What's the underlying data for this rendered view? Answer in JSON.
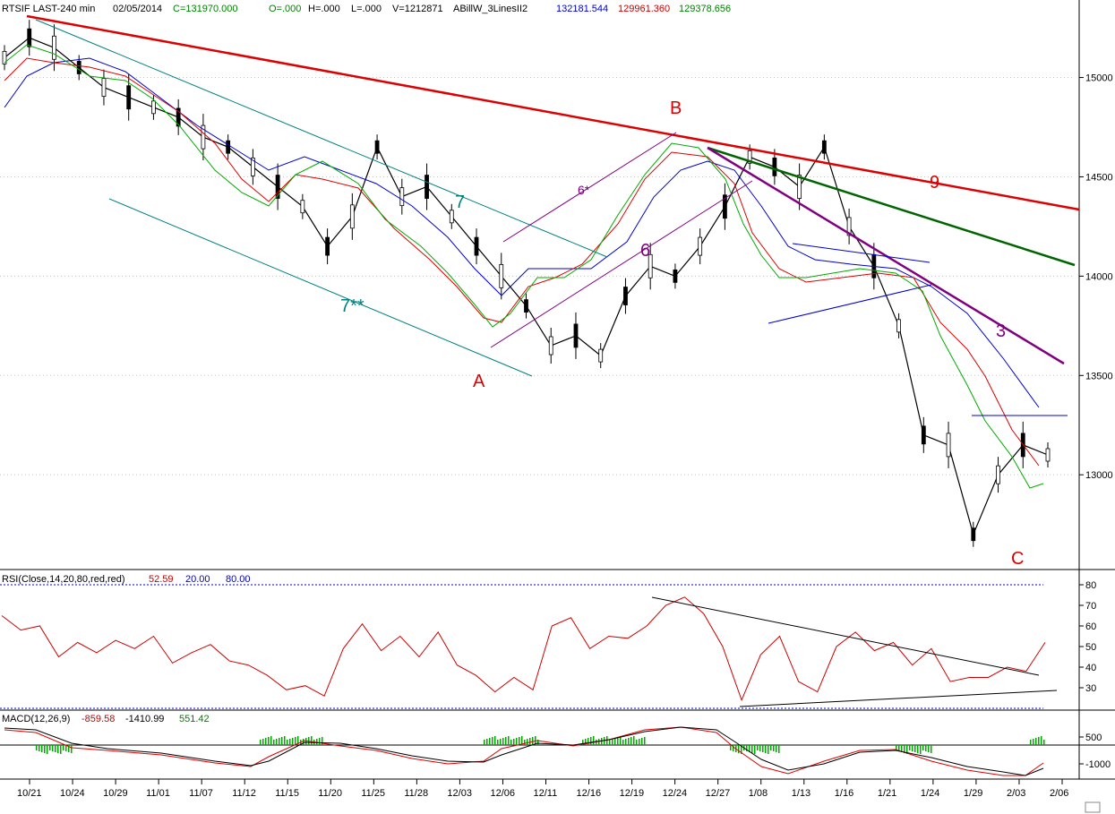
{
  "header": {
    "instrument": "RTSIF LAST-240 min",
    "date": "02/05/2014",
    "close": "C=131970.000",
    "open": "O=.000",
    "high": "H=.000",
    "low": "L=.000",
    "volume": "V=1212871",
    "indicator": "ABillW_3LinesII2",
    "line_blue": "132181.544",
    "line_red": "129961.360",
    "line_green": "129378.656"
  },
  "colors": {
    "price": "#000000",
    "rsi": "#cc0000",
    "blue_line": "#0000cc",
    "red_line": "#dd0000",
    "green_line": "#00aa00",
    "teal": "#008080",
    "purple": "#800080",
    "dark_green": "#006400",
    "macd_hist": "#00aa00"
  },
  "chart_data": [
    {
      "type": "candlestick",
      "yaxis_ticks": [
        "15000",
        "14500",
        "14000",
        "13500",
        "13000"
      ],
      "ylim": [
        12550,
        15300
      ],
      "x_tick_labels": [
        "10/21",
        "10/24",
        "10/29",
        "11/01",
        "11/07",
        "11/12",
        "11/15",
        "11/20",
        "11/25",
        "11/28",
        "12/03",
        "12/06",
        "12/11",
        "12/16",
        "12/19",
        "12/24",
        "12/27",
        "1/08",
        "1/13",
        "1/16",
        "1/21",
        "1/24",
        "1/29",
        "2/03",
        "2/06"
      ],
      "price_path": [
        [
          0,
          15100
        ],
        [
          1,
          15200
        ],
        [
          2,
          15150
        ],
        [
          3,
          15050
        ],
        [
          4,
          14950
        ],
        [
          5,
          14900
        ],
        [
          6,
          14850
        ],
        [
          7,
          14800
        ],
        [
          8,
          14700
        ],
        [
          9,
          14650
        ],
        [
          10,
          14550
        ],
        [
          11,
          14450
        ],
        [
          12,
          14350
        ],
        [
          13,
          14150
        ],
        [
          14,
          14300
        ],
        [
          15,
          14650
        ],
        [
          16,
          14400
        ],
        [
          17,
          14450
        ],
        [
          18,
          14300
        ],
        [
          19,
          14150
        ],
        [
          20,
          14000
        ],
        [
          21,
          13850
        ],
        [
          22,
          13650
        ],
        [
          23,
          13700
        ],
        [
          24,
          13600
        ],
        [
          25,
          13900
        ],
        [
          26,
          14050
        ],
        [
          27,
          14000
        ],
        [
          28,
          14150
        ],
        [
          29,
          14350
        ],
        [
          30,
          14600
        ],
        [
          31,
          14550
        ],
        [
          32,
          14450
        ],
        [
          33,
          14650
        ],
        [
          34,
          14250
        ],
        [
          35,
          14050
        ],
        [
          36,
          13750
        ],
        [
          37,
          13200
        ],
        [
          38,
          13150
        ],
        [
          39,
          12700
        ],
        [
          40,
          13000
        ],
        [
          41,
          13150
        ],
        [
          42,
          13100
        ]
      ],
      "annotations": {
        "wave_labels": [
          "A",
          "B",
          "C"
        ],
        "line_labels": [
          "7",
          "7**",
          "6*",
          "6",
          "9",
          "3"
        ]
      }
    },
    {
      "type": "line",
      "title": "RSI(Close,14,20,80,red,red)",
      "readouts": [
        "52.59",
        "20.00",
        "80.00"
      ],
      "yaxis_ticks": [
        "80",
        "70",
        "60",
        "50",
        "40",
        "30"
      ],
      "ylim": [
        17,
        85
      ],
      "levels": [
        20,
        80
      ],
      "values": [
        65,
        58,
        60,
        45,
        52,
        47,
        53,
        49,
        55,
        42,
        47,
        51,
        43,
        41,
        36,
        29,
        31,
        26,
        49,
        61,
        48,
        55,
        45,
        57,
        41,
        36,
        28,
        35,
        29,
        60,
        64,
        49,
        55,
        54,
        60,
        70,
        74,
        66,
        50,
        24,
        46,
        55,
        33,
        28,
        50,
        57,
        48,
        52,
        41,
        49,
        33,
        35,
        35,
        40,
        38,
        52
      ]
    },
    {
      "type": "line",
      "title": "MACD(12,26,9)",
      "readouts": [
        "-859.58",
        "-1410.99",
        "551.42"
      ],
      "yaxis_ticks": [
        "500",
        "-1000"
      ],
      "ylim": [
        -1500,
        1100
      ]
    }
  ]
}
